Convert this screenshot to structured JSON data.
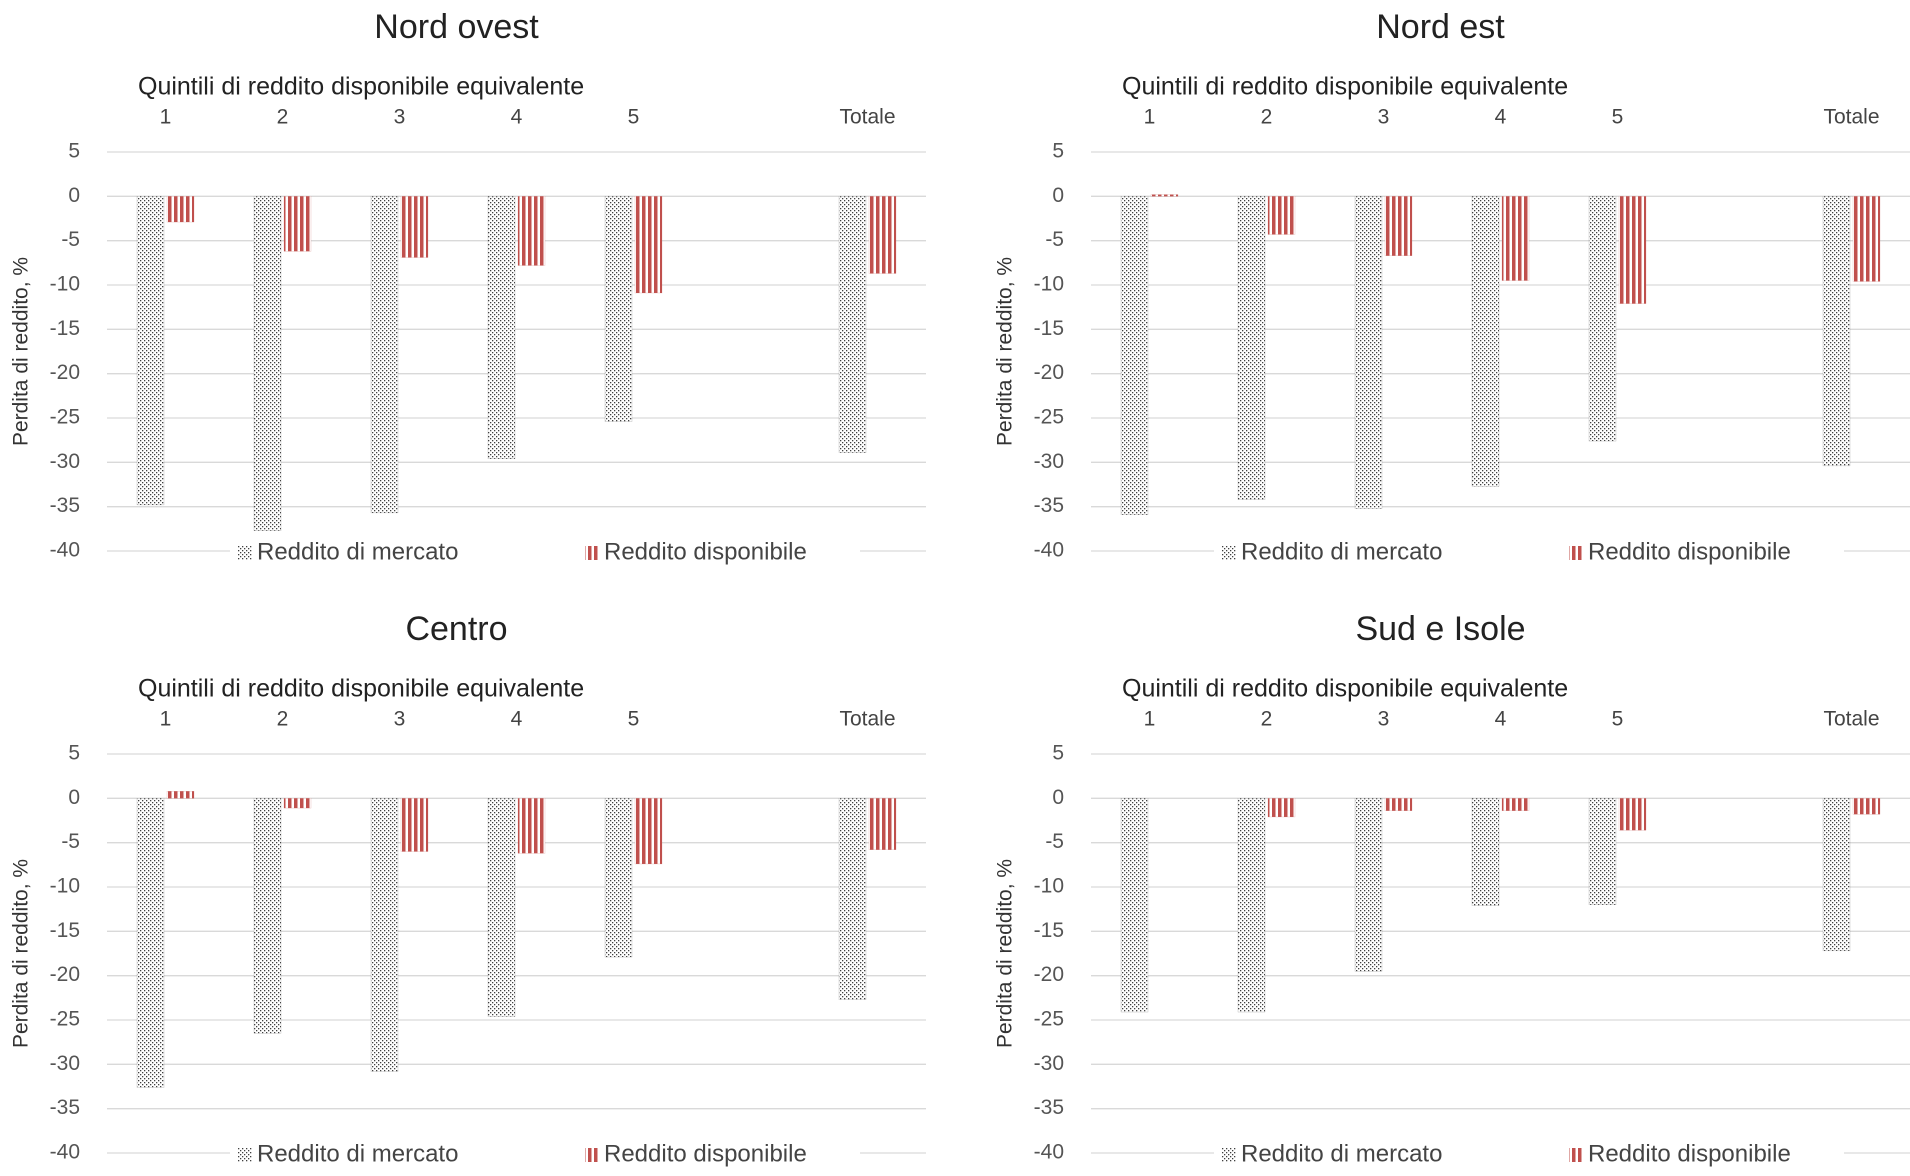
{
  "chart_data": [
    {
      "type": "bar",
      "title": "Nord ovest",
      "subtitle": "Quintili di reddito disponibile  equivalente",
      "y_label": "Perdita di reddito, %",
      "categories": [
        "1",
        "2",
        "3",
        "4",
        "5",
        null,
        "Totale"
      ],
      "series": [
        {
          "name": "Reddito di mercato",
          "color": "#404040",
          "values": [
            -34.8,
            -37.7,
            -35.7,
            -29.6,
            -25.4,
            null,
            -28.9
          ]
        },
        {
          "name": "Reddito disponibile",
          "color": "#c0504d",
          "values": [
            -2.9,
            -6.2,
            -6.9,
            -7.8,
            -10.9,
            null,
            -8.7
          ]
        }
      ],
      "ylim": [
        -40,
        5
      ],
      "yticks": [
        5,
        0,
        -5,
        -10,
        -15,
        -20,
        -25,
        -30,
        -35,
        -40
      ],
      "grid": true,
      "legend": "bottom"
    },
    {
      "type": "bar",
      "title": "Nord est",
      "subtitle": "Quintili di reddito disponibile  equivalente",
      "y_label": "Perdita di reddito, %",
      "categories": [
        "1",
        "2",
        "3",
        "4",
        "5",
        null,
        "Totale"
      ],
      "series": [
        {
          "name": "Reddito di mercato",
          "color": "#404040",
          "values": [
            -35.9,
            -34.2,
            -35.2,
            -32.7,
            -27.6,
            null,
            -30.4
          ]
        },
        {
          "name": "Reddito disponibile",
          "color": "#c0504d",
          "values": [
            0.2,
            -4.3,
            -6.7,
            -9.5,
            -12.1,
            null,
            -9.6
          ]
        }
      ],
      "ylim": [
        -40,
        5
      ],
      "yticks": [
        5,
        0,
        -5,
        -10,
        -15,
        -20,
        -25,
        -30,
        -35,
        -40
      ],
      "grid": true,
      "legend": "bottom"
    },
    {
      "type": "bar",
      "title": "Centro",
      "subtitle": "Quintili di reddito disponibile  equivalente",
      "y_label": "Perdita di reddito, %",
      "categories": [
        "1",
        "2",
        "3",
        "4",
        "5",
        null,
        "Totale"
      ],
      "series": [
        {
          "name": "Reddito di mercato",
          "color": "#404040",
          "values": [
            -32.6,
            -26.5,
            -30.8,
            -24.6,
            -17.9,
            null,
            -22.7
          ]
        },
        {
          "name": "Reddito disponibile",
          "color": "#c0504d",
          "values": [
            0.8,
            -1.1,
            -6.0,
            -6.2,
            -7.4,
            null,
            -5.8
          ]
        }
      ],
      "ylim": [
        -40,
        5
      ],
      "yticks": [
        5,
        0,
        -5,
        -10,
        -15,
        -20,
        -25,
        -30,
        -35,
        -40
      ],
      "grid": true,
      "legend": "bottom"
    },
    {
      "type": "bar",
      "title": "Sud e Isole",
      "subtitle": "Quintili di reddito disponibile  equivalente",
      "y_label": "Perdita di reddito, %",
      "categories": [
        "1",
        "2",
        "3",
        "4",
        "5",
        null,
        "Totale"
      ],
      "series": [
        {
          "name": "Reddito di mercato",
          "color": "#404040",
          "values": [
            -24.1,
            -24.1,
            -19.5,
            -12.1,
            -12.0,
            null,
            -17.2
          ]
        },
        {
          "name": "Reddito disponibile",
          "color": "#c0504d",
          "values": [
            0,
            -2.1,
            -1.4,
            -1.4,
            -3.6,
            null,
            -1.8
          ]
        }
      ],
      "ylim": [
        -40,
        5
      ],
      "yticks": [
        5,
        0,
        -5,
        -10,
        -15,
        -20,
        -25,
        -30,
        -35,
        -40
      ],
      "grid": true,
      "legend": "bottom"
    }
  ]
}
